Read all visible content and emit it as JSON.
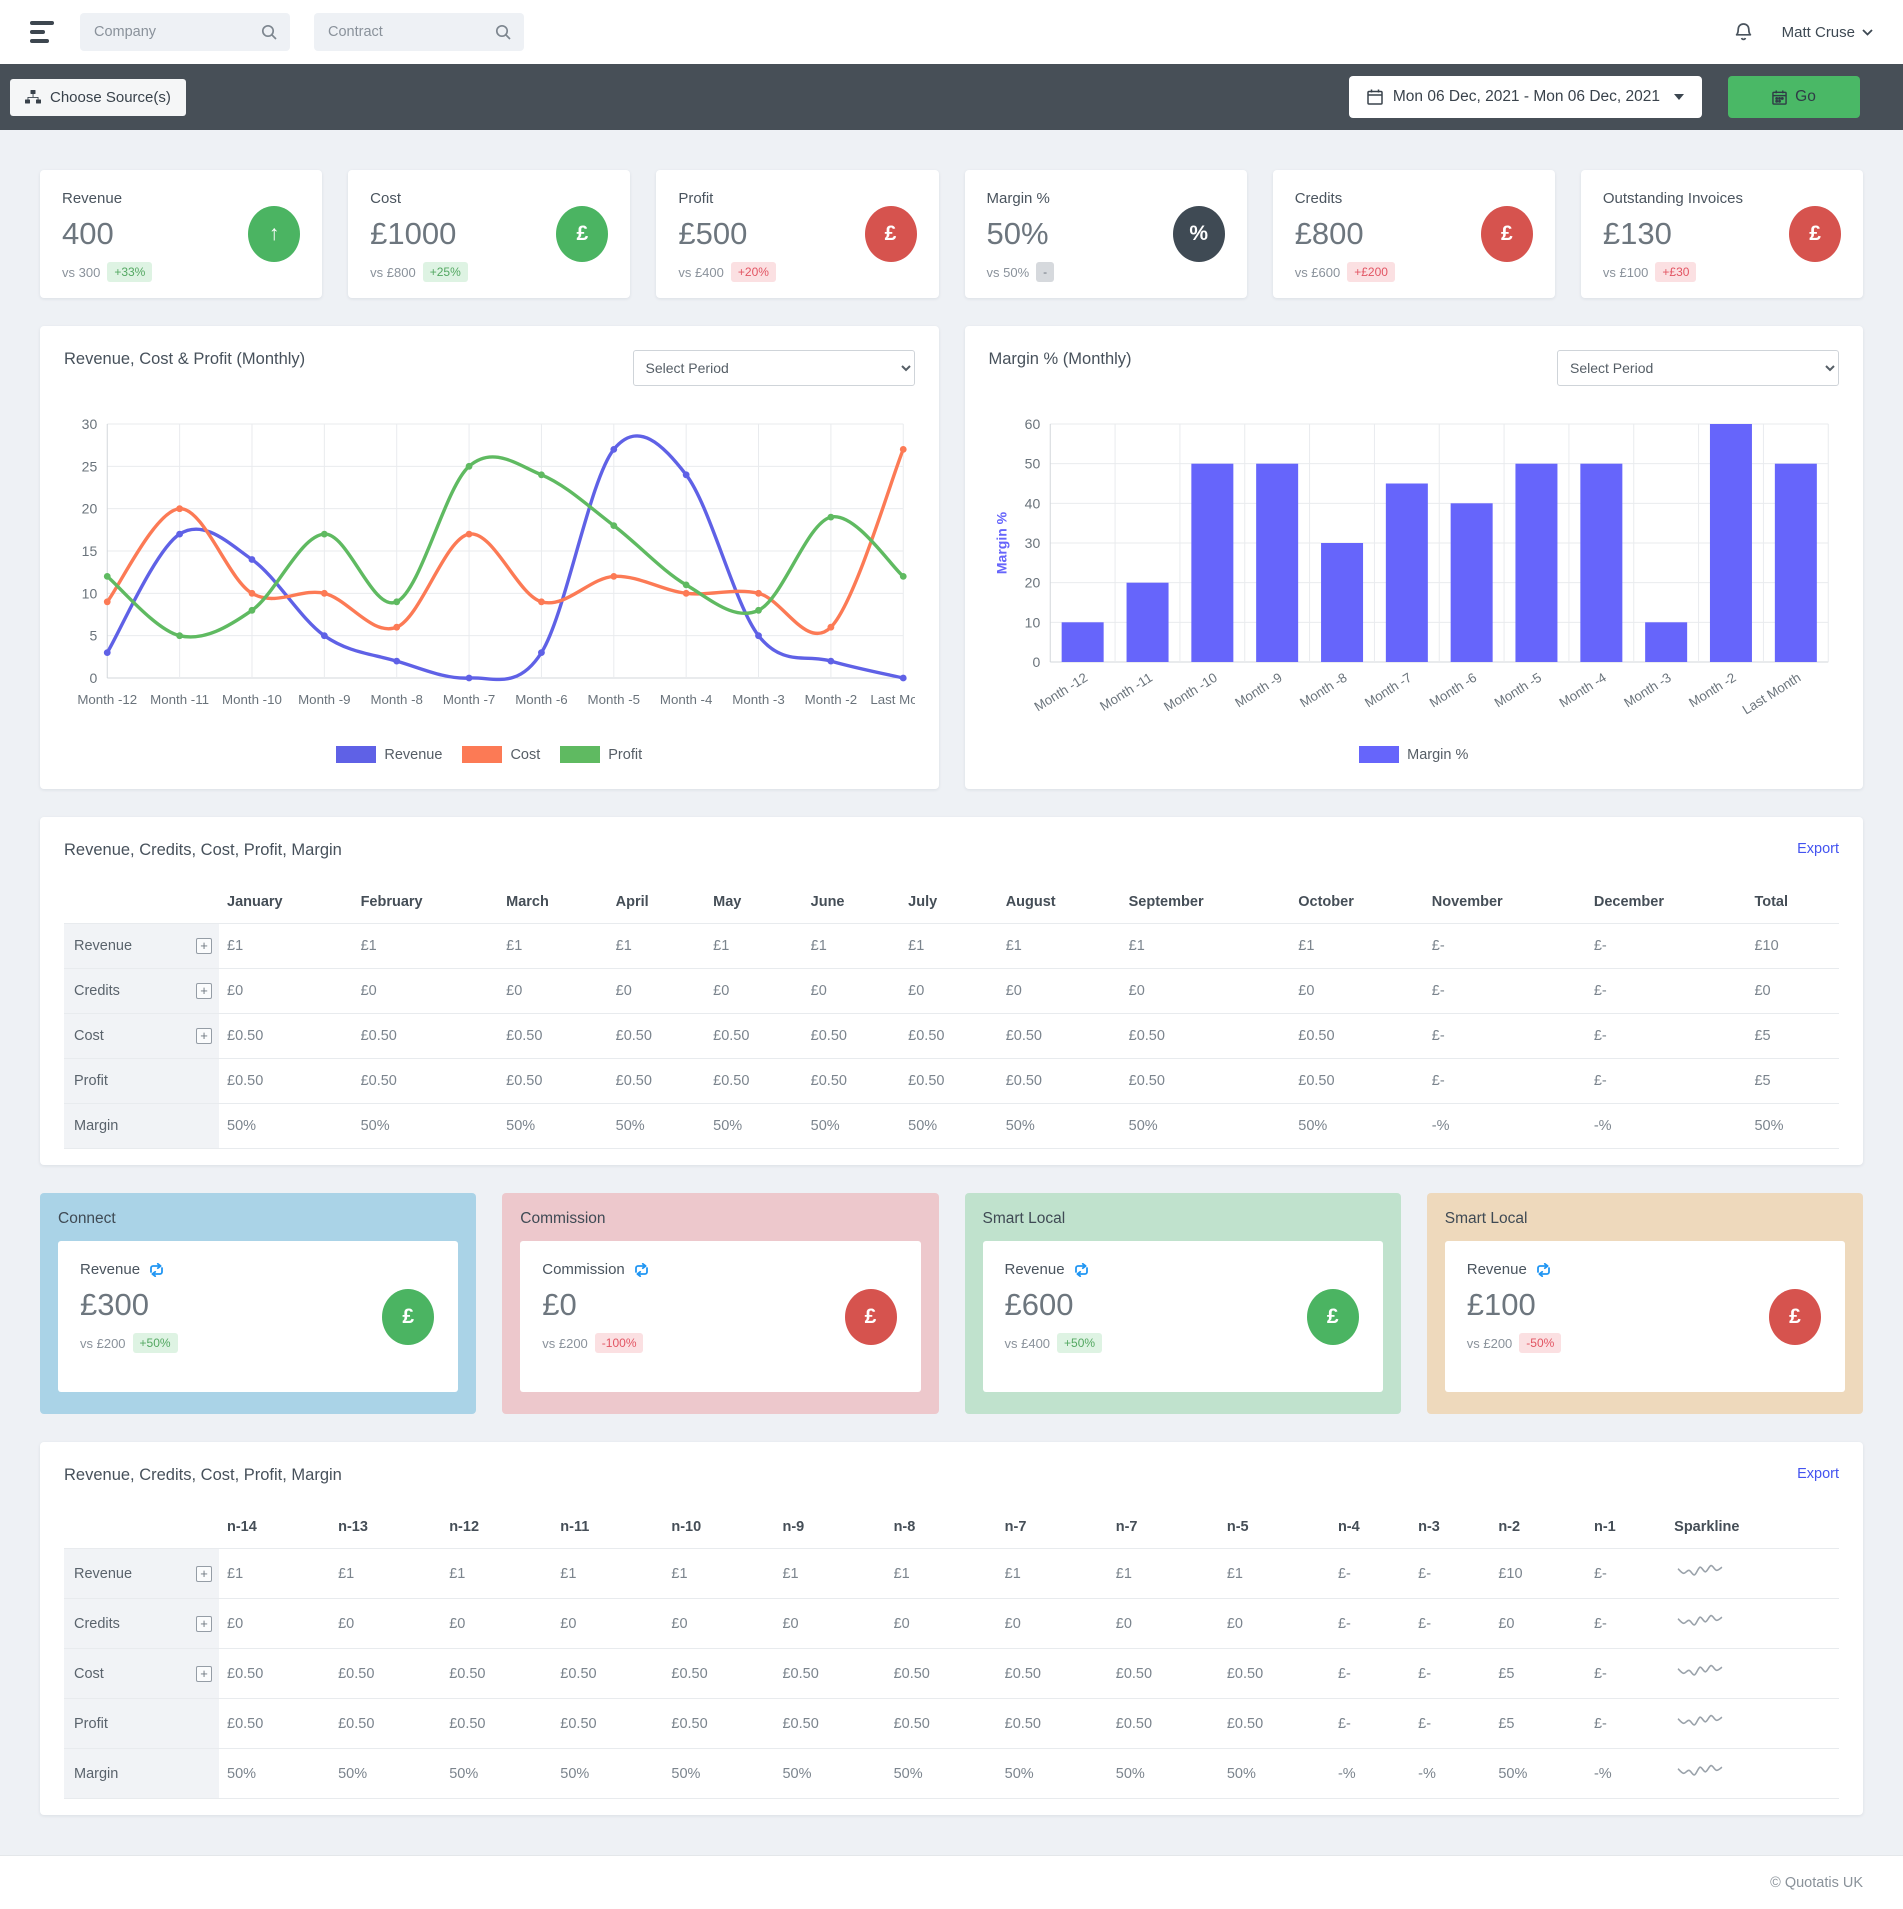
{
  "topbar": {
    "company_placeholder": "Company",
    "contract_placeholder": "Contract",
    "user_name": "Matt Cruse"
  },
  "toolbar": {
    "choose_sources_label": "Choose Source(s)",
    "date_range": "Mon 06 Dec, 2021 - Mon 06 Dec, 2021",
    "go_label": "Go"
  },
  "kpis": [
    {
      "label": "Revenue",
      "value": "400",
      "vs": "vs 300",
      "badge": "+33%",
      "badge_tone": "green",
      "icon": "arrow-up",
      "circle_color": "#4bb462"
    },
    {
      "label": "Cost",
      "value": "£1000",
      "vs": "vs £800",
      "badge": "+25%",
      "badge_tone": "green",
      "icon": "pound",
      "circle_color": "#4bb462"
    },
    {
      "label": "Profit",
      "value": "£500",
      "vs": "vs £400",
      "badge": "+20%",
      "badge_tone": "red",
      "icon": "pound",
      "circle_color": "#d6534e"
    },
    {
      "label": "Margin %",
      "value": "50%",
      "vs": "vs 50%",
      "badge": "-",
      "badge_tone": "gray",
      "icon": "percent",
      "circle_color": "#3f4a54"
    },
    {
      "label": "Credits",
      "value": "£800",
      "vs": "vs £600",
      "badge": "+£200",
      "badge_tone": "red",
      "icon": "pound",
      "circle_color": "#d6534e"
    },
    {
      "label": "Outstanding Invoices",
      "value": "£130",
      "vs": "vs £100",
      "badge": "+£30",
      "badge_tone": "red",
      "icon": "pound",
      "circle_color": "#d6534e"
    }
  ],
  "chart_data": [
    {
      "type": "line",
      "title": "Revenue, Cost & Profit (Monthly)",
      "period_placeholder": "Select Period",
      "categories": [
        "Month -12",
        "Month -11",
        "Month -10",
        "Month -9",
        "Month -8",
        "Month -7",
        "Month -6",
        "Month -5",
        "Month -4",
        "Month -3",
        "Month -2",
        "Last Month"
      ],
      "series": [
        {
          "name": "Revenue",
          "color": "#5f61e6",
          "values": [
            3,
            17,
            14,
            5,
            2,
            0,
            3,
            27,
            24,
            5,
            2,
            0
          ]
        },
        {
          "name": "Cost",
          "color": "#fc7a55",
          "values": [
            9,
            20,
            10,
            10,
            6,
            17,
            9,
            12,
            10,
            10,
            6,
            27
          ]
        },
        {
          "name": "Profit",
          "color": "#5fba61",
          "values": [
            12,
            5,
            8,
            17,
            9,
            25,
            24,
            18,
            11,
            8,
            19,
            12
          ]
        }
      ],
      "ylim": [
        0,
        30
      ],
      "ytick_step": 5,
      "grid": true,
      "legend_position": "bottom"
    },
    {
      "type": "bar",
      "title": "Margin % (Monthly)",
      "period_placeholder": "Select Period",
      "categories": [
        "Month -12",
        "Month -11",
        "Month -10",
        "Month -9",
        "Month -8",
        "Month -7",
        "Month -6",
        "Month -5",
        "Month -4",
        "Month -3",
        "Month -2",
        "Last Month"
      ],
      "series": [
        {
          "name": "Margin %",
          "color": "#6665fb",
          "values": [
            10,
            20,
            50,
            50,
            30,
            45,
            40,
            50,
            50,
            10,
            60,
            50
          ]
        }
      ],
      "ylabel": "Margin %",
      "ylim": [
        0,
        60
      ],
      "ytick_step": 10,
      "grid": true,
      "legend_position": "bottom"
    }
  ],
  "table_monthly": {
    "title": "Revenue, Credits, Cost, Profit, Margin",
    "export_label": "Export",
    "columns": [
      "January",
      "February",
      "March",
      "April",
      "May",
      "June",
      "July",
      "August",
      "September",
      "October",
      "November",
      "December",
      "Total"
    ],
    "rows": [
      {
        "label": "Revenue",
        "expandable": true,
        "cells": [
          "£1",
          "£1",
          "£1",
          "£1",
          "£1",
          "£1",
          "£1",
          "£1",
          "£1",
          "£1",
          "£-",
          "£-",
          "£10"
        ]
      },
      {
        "label": "Credits",
        "expandable": true,
        "cells": [
          "£0",
          "£0",
          "£0",
          "£0",
          "£0",
          "£0",
          "£0",
          "£0",
          "£0",
          "£0",
          "£-",
          "£-",
          "£0"
        ]
      },
      {
        "label": "Cost",
        "expandable": true,
        "cells": [
          "£0.50",
          "£0.50",
          "£0.50",
          "£0.50",
          "£0.50",
          "£0.50",
          "£0.50",
          "£0.50",
          "£0.50",
          "£0.50",
          "£-",
          "£-",
          "£5"
        ]
      },
      {
        "label": "Profit",
        "expandable": false,
        "cells": [
          "£0.50",
          "£0.50",
          "£0.50",
          "£0.50",
          "£0.50",
          "£0.50",
          "£0.50",
          "£0.50",
          "£0.50",
          "£0.50",
          "£-",
          "£-",
          "£5"
        ]
      },
      {
        "label": "Margin",
        "expandable": false,
        "cells": [
          "50%",
          "50%",
          "50%",
          "50%",
          "50%",
          "50%",
          "50%",
          "50%",
          "50%",
          "50%",
          "-%",
          "-%",
          "50%"
        ]
      }
    ]
  },
  "sources": [
    {
      "title": "Connect",
      "bg": "#aad3e7",
      "metric": "Revenue",
      "value": "£300",
      "vs": "vs £200",
      "badge": "+50%",
      "badge_tone": "green",
      "circle_color": "#4bb462"
    },
    {
      "title": "Commission",
      "bg": "#edc8cc",
      "metric": "Commission",
      "value": "£0",
      "vs": "vs £200",
      "badge": "-100%",
      "badge_tone": "red",
      "circle_color": "#d6534e"
    },
    {
      "title": "Smart Local",
      "bg": "#c0e2cd",
      "metric": "Revenue",
      "value": "£600",
      "vs": "vs £400",
      "badge": "+50%",
      "badge_tone": "green",
      "circle_color": "#4bb462"
    },
    {
      "title": "Smart Local",
      "bg": "#eed9bc",
      "metric": "Revenue",
      "value": "£100",
      "vs": "vs £200",
      "badge": "-50%",
      "badge_tone": "red",
      "circle_color": "#d6534e"
    }
  ],
  "table_periods": {
    "title": "Revenue, Credits, Cost, Profit, Margin",
    "export_label": "Export",
    "columns": [
      "n-14",
      "n-13",
      "n-12",
      "n-11",
      "n-10",
      "n-9",
      "n-8",
      "n-7",
      "n-7",
      "n-5",
      "n-4",
      "n-3",
      "n-2",
      "n-1",
      "Sparkline"
    ],
    "sparkline_points": [
      6,
      3,
      5,
      2,
      7,
      4,
      8,
      5,
      7
    ],
    "rows": [
      {
        "label": "Revenue",
        "expandable": true,
        "cells": [
          "£1",
          "£1",
          "£1",
          "£1",
          "£1",
          "£1",
          "£1",
          "£1",
          "£1",
          "£1",
          "£-",
          "£-",
          "£10",
          "£-"
        ]
      },
      {
        "label": "Credits",
        "expandable": true,
        "cells": [
          "£0",
          "£0",
          "£0",
          "£0",
          "£0",
          "£0",
          "£0",
          "£0",
          "£0",
          "£0",
          "£-",
          "£-",
          "£0",
          "£-"
        ]
      },
      {
        "label": "Cost",
        "expandable": true,
        "cells": [
          "£0.50",
          "£0.50",
          "£0.50",
          "£0.50",
          "£0.50",
          "£0.50",
          "£0.50",
          "£0.50",
          "£0.50",
          "£0.50",
          "£-",
          "£-",
          "£5",
          "£-"
        ]
      },
      {
        "label": "Profit",
        "expandable": false,
        "cells": [
          "£0.50",
          "£0.50",
          "£0.50",
          "£0.50",
          "£0.50",
          "£0.50",
          "£0.50",
          "£0.50",
          "£0.50",
          "£0.50",
          "£-",
          "£-",
          "£5",
          "£-"
        ]
      },
      {
        "label": "Margin",
        "expandable": false,
        "cells": [
          "50%",
          "50%",
          "50%",
          "50%",
          "50%",
          "50%",
          "50%",
          "50%",
          "50%",
          "50%",
          "-%",
          "-%",
          "50%",
          "-%"
        ]
      }
    ]
  },
  "footer": {
    "copyright": "© Quotatis UK"
  }
}
